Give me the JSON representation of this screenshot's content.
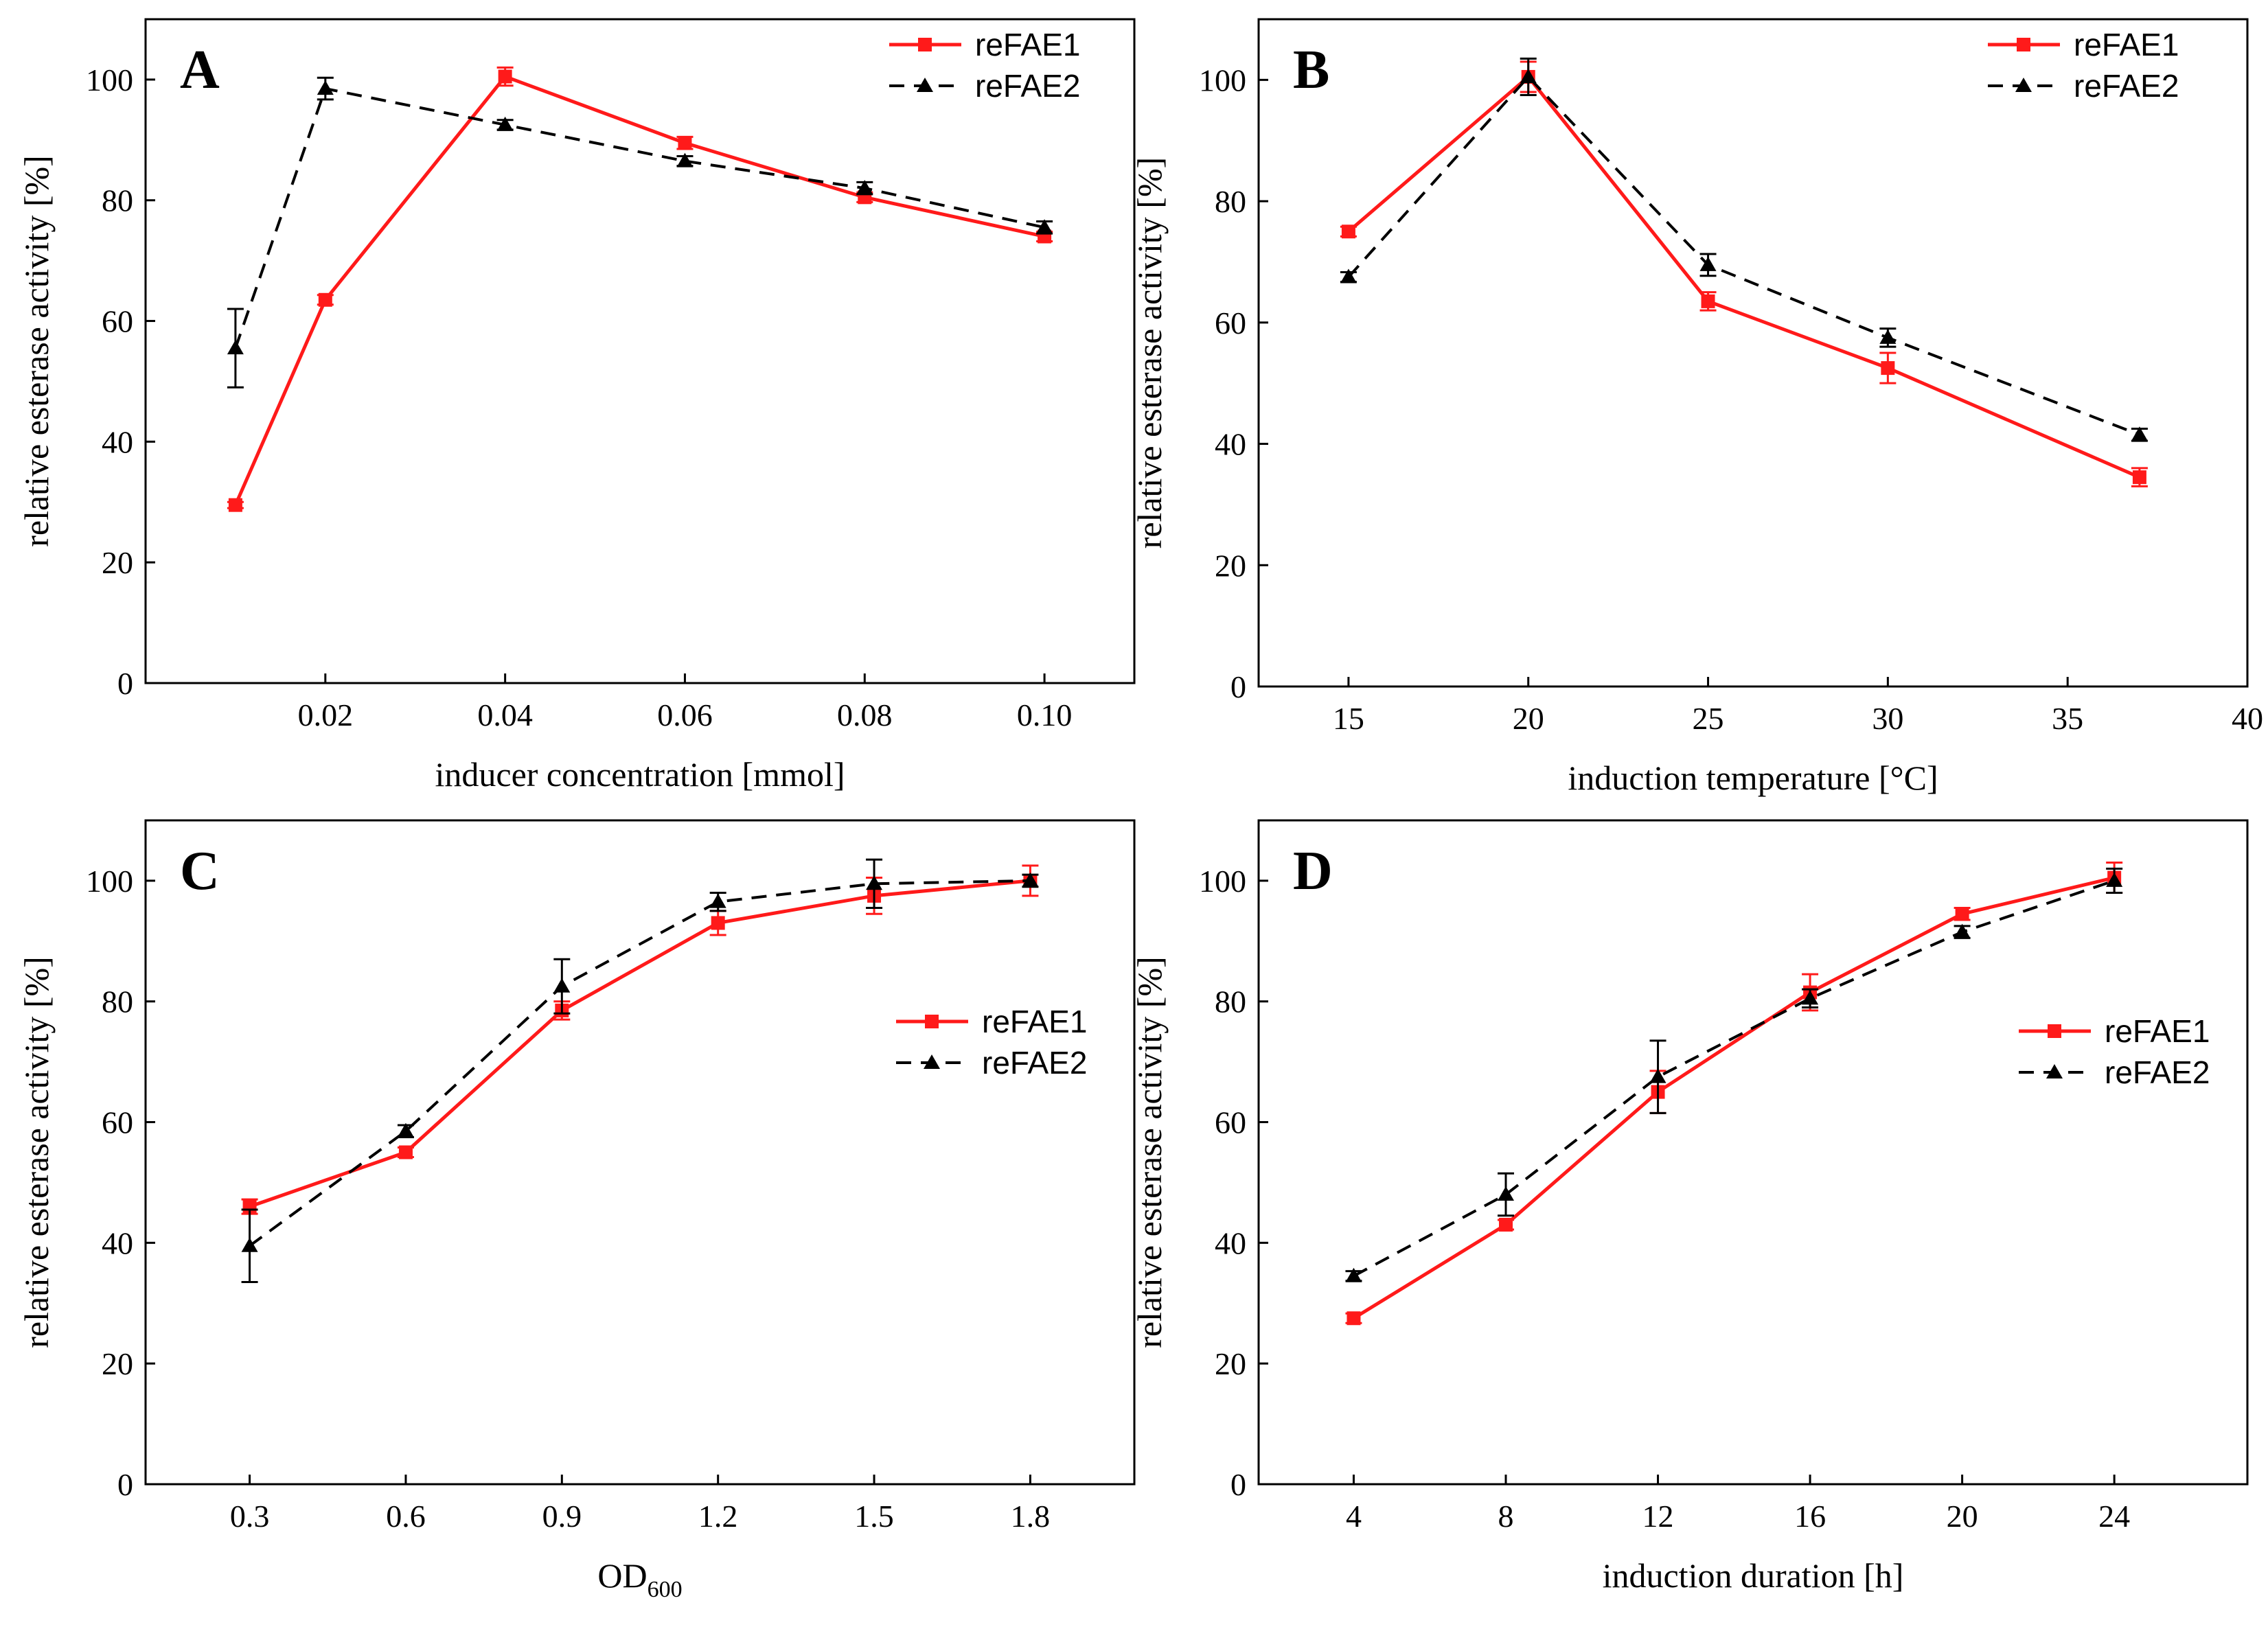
{
  "colors": {
    "reFAE1": "#ff1a1a",
    "reFAE2": "#000000"
  },
  "chart_data": [
    {
      "type": "line",
      "panel_label": "A",
      "xlabel": "inducer concentration [mmol]",
      "ylabel": "relative esterase activity [%]",
      "xlim": [
        0,
        0.11
      ],
      "ylim": [
        0,
        110
      ],
      "xticks": [
        0.02,
        0.04,
        0.06,
        0.08,
        0.1
      ],
      "xtick_labels": [
        "0.02",
        "0.04",
        "0.06",
        "0.08",
        "0.10"
      ],
      "yticks": [
        0,
        20,
        40,
        60,
        80,
        100
      ],
      "ytick_labels": [
        "0",
        "20",
        "40",
        "60",
        "80",
        "100"
      ],
      "legend_position": "top-right",
      "series": [
        {
          "name": "reFAE1",
          "x": [
            0.01,
            0.02,
            0.04,
            0.06,
            0.08,
            0.1
          ],
          "y": [
            29.5,
            63.5,
            100.5,
            89.5,
            80.5,
            74
          ],
          "err": [
            0.5,
            0.8,
            1.5,
            1,
            0.8,
            0.8
          ]
        },
        {
          "name": "reFAE2",
          "x": [
            0.01,
            0.02,
            0.04,
            0.06,
            0.08,
            0.1
          ],
          "y": [
            55.5,
            98.5,
            92.5,
            86.5,
            82,
            75.5
          ],
          "err": [
            6.5,
            1.8,
            0.8,
            0.8,
            1,
            1
          ]
        }
      ]
    },
    {
      "type": "line",
      "panel_label": "B",
      "xlabel": "induction temperature [°C]",
      "ylabel": "relative esterase activity [%]",
      "xlim": [
        12.5,
        40
      ],
      "ylim": [
        0,
        110
      ],
      "xticks": [
        15,
        20,
        25,
        30,
        35,
        40
      ],
      "xtick_labels": [
        "15",
        "20",
        "25",
        "30",
        "35",
        "40"
      ],
      "yticks": [
        0,
        20,
        40,
        60,
        80,
        100
      ],
      "ytick_labels": [
        "0",
        "20",
        "40",
        "60",
        "80",
        "100"
      ],
      "legend_position": "top-right",
      "series": [
        {
          "name": "reFAE1",
          "x": [
            15,
            20,
            25,
            30,
            37
          ],
          "y": [
            75,
            100.5,
            63.5,
            52.5,
            34.5
          ],
          "err": [
            0.8,
            2.5,
            1.5,
            2.5,
            1.5
          ]
        },
        {
          "name": "reFAE2",
          "x": [
            15,
            20,
            25,
            30,
            37
          ],
          "y": [
            67.5,
            100.5,
            69.5,
            57.5,
            41.5
          ],
          "err": [
            0.8,
            3,
            1.8,
            1.5,
            1
          ]
        }
      ]
    },
    {
      "type": "line",
      "panel_label": "C",
      "xlabel_main": "OD",
      "xlabel_sub": "600",
      "ylabel": "relative esterase activity [%]",
      "xlim": [
        0.1,
        2.0
      ],
      "ylim": [
        0,
        110
      ],
      "xticks": [
        0.3,
        0.6,
        0.9,
        1.2,
        1.5,
        1.8
      ],
      "xtick_labels": [
        "0.3",
        "0.6",
        "0.9",
        "1.2",
        "1.5",
        "1.8"
      ],
      "yticks": [
        0,
        20,
        40,
        60,
        80,
        100
      ],
      "ytick_labels": [
        "0",
        "20",
        "40",
        "60",
        "80",
        "100"
      ],
      "legend_position": "center-right",
      "series": [
        {
          "name": "reFAE1",
          "x": [
            0.3,
            0.6,
            0.9,
            1.2,
            1.5,
            1.8
          ],
          "y": [
            46,
            55,
            78.5,
            93,
            97.5,
            100
          ],
          "err": [
            1.2,
            0.8,
            1.5,
            2,
            3,
            2.5
          ]
        },
        {
          "name": "reFAE2",
          "x": [
            0.3,
            0.6,
            0.9,
            1.2,
            1.5,
            1.8
          ],
          "y": [
            39.5,
            58.5,
            82.5,
            96.5,
            99.5,
            100
          ],
          "err": [
            6,
            1,
            4.5,
            1.5,
            4,
            1
          ]
        }
      ]
    },
    {
      "type": "line",
      "panel_label": "D",
      "xlabel": "induction duration [h]",
      "ylabel": "relative esterase activity [%]",
      "xlim": [
        1.5,
        27.5
      ],
      "ylim": [
        0,
        110
      ],
      "xticks": [
        4,
        8,
        12,
        16,
        20,
        24
      ],
      "xtick_labels": [
        "4",
        "8",
        "12",
        "16",
        "20",
        "24"
      ],
      "yticks": [
        0,
        20,
        40,
        60,
        80,
        100
      ],
      "ytick_labels": [
        "0",
        "20",
        "40",
        "60",
        "80",
        "100"
      ],
      "legend_position": "center-right",
      "series": [
        {
          "name": "reFAE1",
          "x": [
            4,
            8,
            12,
            16,
            20,
            24
          ],
          "y": [
            27.5,
            43,
            65,
            81.5,
            94.5,
            100.5
          ],
          "err": [
            0.8,
            0.8,
            3.5,
            3,
            1,
            2.5
          ]
        },
        {
          "name": "reFAE2",
          "x": [
            4,
            8,
            12,
            16,
            20,
            24
          ],
          "y": [
            34.5,
            48,
            67.5,
            80.5,
            91.5,
            100
          ],
          "err": [
            0.8,
            3.5,
            6,
            1.5,
            1,
            2
          ]
        }
      ]
    }
  ]
}
